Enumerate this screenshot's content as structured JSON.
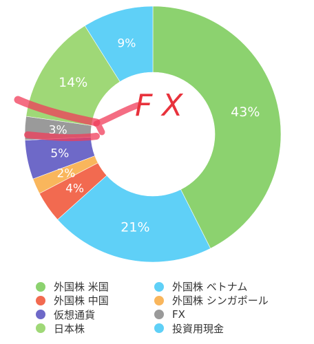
{
  "chart_data": {
    "type": "pie",
    "hole": true,
    "slices": [
      {
        "label": "外国株 米国",
        "value": 43,
        "display": "43%",
        "color": "#8cd26f"
      },
      {
        "label": "外国株 ベトナム",
        "value": 21,
        "display": "21%",
        "color": "#5fd0f7"
      },
      {
        "label": "外国株 中国",
        "value": 4,
        "display": "4%",
        "color": "#f26a50"
      },
      {
        "label": "外国株 シンガポール",
        "value": 2,
        "display": "2%",
        "color": "#f9b65c"
      },
      {
        "label": "仮想通貨",
        "value": 5,
        "display": "5%",
        "color": "#6e69c8"
      },
      {
        "label": "FX",
        "value": 3,
        "display": "3%",
        "color": "#9a9a9a"
      },
      {
        "label": "日本株",
        "value": 14,
        "display": "14%",
        "color": "#9fd877"
      },
      {
        "label": "投資用現金",
        "value": 9,
        "display": "9%",
        "color": "#5fd0f7"
      }
    ],
    "legend_position": "bottom"
  },
  "legend": [
    {
      "label": "外国株 米国",
      "color": "#8cd26f"
    },
    {
      "label": "外国株 ベトナム",
      "color": "#5fd0f7"
    },
    {
      "label": "外国株 中国",
      "color": "#f26a50"
    },
    {
      "label": "外国株 シンガポール",
      "color": "#f9b65c"
    },
    {
      "label": "仮想通貨",
      "color": "#6e69c8"
    },
    {
      "label": "FX",
      "color": "#9a9a9a"
    },
    {
      "label": "日本株",
      "color": "#9fd877"
    },
    {
      "label": "投資用現金",
      "color": "#5fd0f7"
    }
  ],
  "annotation": {
    "text": "FX",
    "color": "#e8323c",
    "highlight_color": "#f03c5a"
  }
}
